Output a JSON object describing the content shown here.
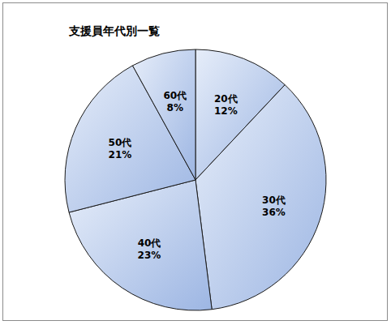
{
  "chart_data": {
    "type": "pie",
    "title": "支援員年代別一覧",
    "categories": [
      "20代",
      "30代",
      "40代",
      "50代",
      "60代"
    ],
    "values": [
      12,
      36,
      23,
      21,
      8
    ],
    "value_labels": [
      "12%",
      "36%",
      "23%",
      "21%",
      "8%"
    ],
    "color": "#9db6e3",
    "data_labels": true
  }
}
